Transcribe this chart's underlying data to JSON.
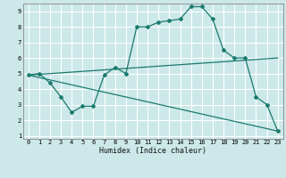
{
  "xlabel": "Humidex (Indice chaleur)",
  "xlim": [
    -0.5,
    23.5
  ],
  "ylim": [
    0.8,
    9.5
  ],
  "xticks": [
    0,
    1,
    2,
    3,
    4,
    5,
    6,
    7,
    8,
    9,
    10,
    11,
    12,
    13,
    14,
    15,
    16,
    17,
    18,
    19,
    20,
    21,
    22,
    23
  ],
  "yticks": [
    1,
    2,
    3,
    4,
    5,
    6,
    7,
    8,
    9
  ],
  "bg_color": "#cce8e8",
  "line_color": "#1a7a6e",
  "grid_color": "#ffffff",
  "line1_x": [
    0,
    1,
    2,
    3,
    4,
    5,
    6,
    7,
    8,
    9,
    10,
    11,
    12,
    13,
    14,
    15,
    16,
    17,
    18,
    19,
    20,
    21,
    22,
    23
  ],
  "line1_y": [
    4.9,
    5.0,
    4.4,
    3.5,
    2.5,
    2.9,
    2.9,
    4.9,
    5.4,
    5.0,
    8.0,
    8.0,
    8.3,
    8.4,
    8.5,
    9.3,
    9.3,
    8.5,
    6.5,
    6.0,
    6.0,
    3.5,
    3.0,
    1.3
  ],
  "line2_x": [
    0,
    23
  ],
  "line2_y": [
    4.9,
    1.3
  ],
  "line3_x": [
    0,
    23
  ],
  "line3_y": [
    4.9,
    6.0
  ]
}
